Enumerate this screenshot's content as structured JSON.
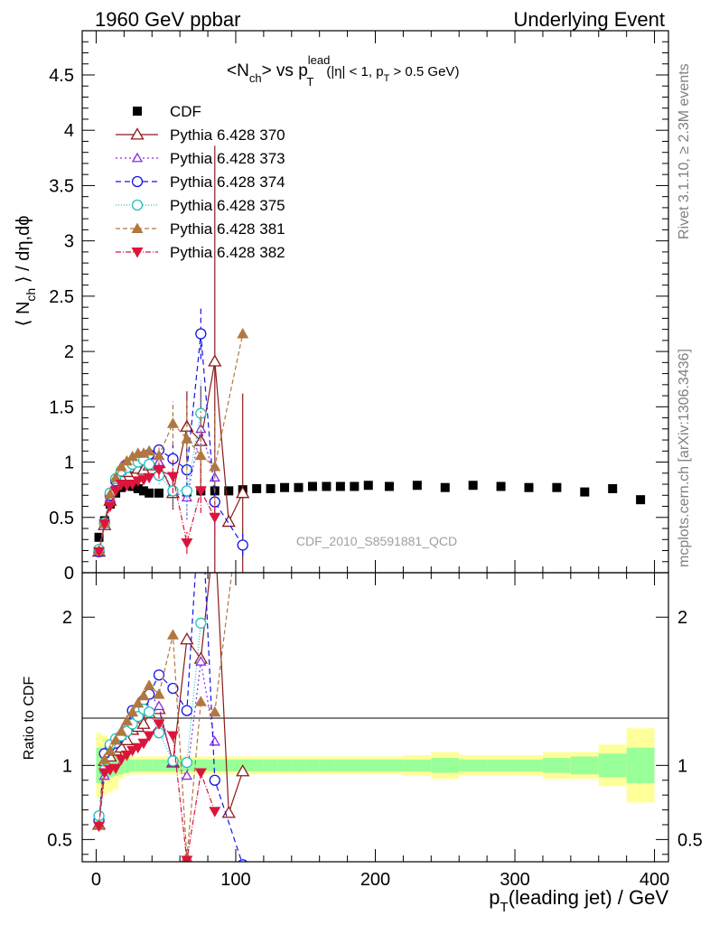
{
  "header": {
    "left": "1960 GeV ppbar",
    "right": "Underlying Event"
  },
  "side": {
    "rivet": "Rivet 3.1.10, ≥ 2.3M events",
    "mcplots": "mcplots.cern.ch [arXiv:1306.3436]"
  },
  "plot_title": {
    "main": "<N",
    "ch_sub": "ch",
    "vs": "> vs p",
    "lead_sup": "lead",
    "T_sub": "T",
    "cut1": "(|η| < 1, p",
    "cut_T_sub": "T",
    "cut2": " > 0.5 GeV)"
  },
  "watermark": "CDF_2010_S8591881_QCD",
  "ylabel_top": {
    "a": "⟨ N",
    "sub": "ch",
    "b": " ⟩ / dη,dϕ"
  },
  "ylabel_bottom": "Ratio to CDF",
  "xlabel": {
    "a": "p",
    "sub": "T",
    "b": "(leading jet) / GeV"
  },
  "chart_data": {
    "type": "scatter",
    "xlim": [
      -10,
      410
    ],
    "x_ticks": [
      "0",
      "100",
      "200",
      "300",
      "400"
    ],
    "main": {
      "ylim": [
        0,
        4.9
      ],
      "y_ticks": [
        "0",
        "0.5",
        "1",
        "1.5",
        "2",
        "2.5",
        "3",
        "3.5",
        "4",
        "4.5"
      ],
      "series": [
        {
          "name": "CDF",
          "color": "#000000",
          "marker": "square",
          "x": [
            2,
            6,
            10,
            14,
            18,
            22,
            26,
            30,
            34,
            38,
            45,
            55,
            65,
            75,
            85,
            95,
            105,
            115,
            125,
            135,
            145,
            155,
            165,
            175,
            185,
            195,
            210,
            230,
            250,
            270,
            290,
            310,
            330,
            350,
            370,
            390
          ],
          "y": [
            0.32,
            0.47,
            0.62,
            0.72,
            0.77,
            0.79,
            0.78,
            0.76,
            0.74,
            0.72,
            0.72,
            0.72,
            0.73,
            0.74,
            0.74,
            0.74,
            0.75,
            0.76,
            0.76,
            0.77,
            0.77,
            0.78,
            0.78,
            0.78,
            0.78,
            0.79,
            0.78,
            0.79,
            0.77,
            0.79,
            0.78,
            0.77,
            0.77,
            0.73,
            0.76,
            0.66
          ]
        },
        {
          "name": "Pythia 6.428 370",
          "color": "#8b1a1a",
          "marker": "triangle-open",
          "dash": "",
          "x": [
            2,
            6,
            10,
            14,
            18,
            22,
            26,
            30,
            34,
            38,
            45,
            55,
            65,
            75,
            85,
            95,
            105
          ],
          "y": [
            0.19,
            0.43,
            0.65,
            0.79,
            0.86,
            0.91,
            0.95,
            0.94,
            0.93,
            0.97,
            0.99,
            0.72,
            1.32,
            1.19,
            1.91,
            0.46,
            0.72
          ],
          "err": [
            0,
            0,
            0,
            0,
            0,
            0,
            0,
            0,
            0,
            0,
            0.07,
            0.15,
            0.32,
            0.5,
            1.95,
            0,
            0.9
          ]
        },
        {
          "name": "Pythia 6.428 373",
          "color": "#8a2be2",
          "marker": "triangle-open-small",
          "dash": "2,3",
          "x": [
            2,
            6,
            10,
            14,
            18,
            22,
            26,
            30,
            34,
            38,
            45,
            55,
            65,
            75,
            85
          ],
          "y": [
            0.19,
            0.44,
            0.68,
            0.84,
            0.92,
            0.98,
            1.0,
            1.03,
            1.04,
            1.06,
            1.0,
            0.73,
            0.68,
            1.3,
            0.86
          ],
          "err": [
            0,
            0,
            0,
            0,
            0,
            0,
            0,
            0,
            0,
            0,
            0.08,
            0.12,
            0.2,
            0.35,
            0.45
          ]
        },
        {
          "name": "Pythia 6.428 374",
          "color": "#1414e6",
          "marker": "circle-open",
          "dash": "6,4",
          "x": [
            2,
            6,
            10,
            14,
            18,
            22,
            26,
            30,
            34,
            38,
            45,
            55,
            65,
            75,
            85,
            105
          ],
          "y": [
            0.19,
            0.45,
            0.7,
            0.83,
            0.92,
            0.98,
            1.0,
            1.04,
            1.05,
            1.07,
            1.11,
            1.03,
            0.93,
            2.16,
            0.64,
            0.25
          ],
          "err": [
            0,
            0,
            0,
            0,
            0,
            0,
            0,
            0,
            0,
            0,
            0.08,
            0.15,
            0.25,
            0.23,
            0.2,
            0.1
          ]
        },
        {
          "name": "Pythia 6.428 375",
          "color": "#20c0c0",
          "marker": "circle-open",
          "dash": "1,2",
          "x": [
            2,
            6,
            10,
            14,
            18,
            22,
            26,
            30,
            34,
            38,
            45,
            55,
            65,
            75
          ],
          "y": [
            0.21,
            0.45,
            0.72,
            0.85,
            0.92,
            0.95,
            0.98,
            1.0,
            1.02,
            0.98,
            0.88,
            0.74,
            0.74,
            1.44
          ],
          "err": [
            0,
            0,
            0,
            0,
            0,
            0,
            0,
            0,
            0,
            0,
            0.08,
            0.15,
            0.25,
            0.3
          ]
        },
        {
          "name": "Pythia 6.428 381",
          "color": "#b07840",
          "marker": "triangle-filled",
          "dash": "5,3",
          "x": [
            2,
            6,
            10,
            14,
            18,
            22,
            26,
            30,
            34,
            38,
            45,
            55,
            65,
            75,
            85,
            105
          ],
          "y": [
            0.2,
            0.45,
            0.71,
            0.86,
            0.96,
            1.01,
            1.05,
            1.08,
            1.08,
            1.1,
            1.06,
            1.35,
            1.21,
            1.06,
            0.96,
            2.16
          ],
          "err": [
            0,
            0,
            0,
            0,
            0,
            0,
            0,
            0,
            0,
            0,
            0.1,
            0.2,
            0.35,
            0.4,
            0.5,
            0
          ]
        },
        {
          "name": "Pythia 6.428 382",
          "color": "#dc143c",
          "marker": "triangle-down-filled",
          "dash": "6,2,1,2",
          "x": [
            2,
            6,
            10,
            14,
            18,
            22,
            26,
            30,
            34,
            38,
            45,
            55,
            65,
            75,
            85
          ],
          "y": [
            0.19,
            0.44,
            0.6,
            0.74,
            0.8,
            0.79,
            0.8,
            0.83,
            0.84,
            0.86,
            0.93,
            0.87,
            0.27,
            0.74,
            0.5
          ],
          "err": [
            0,
            0,
            0,
            0,
            0,
            0,
            0,
            0,
            0,
            0,
            0.08,
            0.15,
            0.1,
            0.2,
            0.15
          ]
        }
      ]
    },
    "ratio": {
      "ylim": [
        0.35,
        2.3
      ],
      "y_ticks": [
        "0.5",
        "1",
        "2"
      ],
      "band_bins": [
        0,
        4,
        8,
        12,
        16,
        20,
        24,
        28,
        32,
        36,
        40,
        50,
        60,
        70,
        80,
        90,
        100,
        110,
        120,
        130,
        140,
        150,
        160,
        170,
        180,
        190,
        200,
        220,
        240,
        260,
        280,
        300,
        320,
        340,
        360,
        380,
        400
      ],
      "band_inner": [
        0.12,
        0.1,
        0.08,
        0.07,
        0.06,
        0.05,
        0.04,
        0.04,
        0.04,
        0.04,
        0.04,
        0.04,
        0.04,
        0.04,
        0.04,
        0.04,
        0.04,
        0.04,
        0.04,
        0.04,
        0.04,
        0.04,
        0.04,
        0.04,
        0.04,
        0.04,
        0.04,
        0.04,
        0.05,
        0.04,
        0.04,
        0.04,
        0.05,
        0.06,
        0.08,
        0.12
      ],
      "band_outer": [
        0.22,
        0.2,
        0.18,
        0.16,
        0.09,
        0.07,
        0.06,
        0.06,
        0.06,
        0.06,
        0.06,
        0.06,
        0.06,
        0.06,
        0.06,
        0.06,
        0.06,
        0.06,
        0.06,
        0.06,
        0.06,
        0.06,
        0.06,
        0.06,
        0.06,
        0.06,
        0.06,
        0.07,
        0.09,
        0.07,
        0.07,
        0.07,
        0.09,
        0.09,
        0.14,
        0.25
      ],
      "series": [
        {
          "name": "Pythia 6.428 370",
          "x": [
            2,
            6,
            10,
            14,
            18,
            22,
            26,
            30,
            34,
            38,
            45,
            55,
            65,
            75,
            85,
            95,
            105
          ],
          "y": [
            0.6,
            1.03,
            1.06,
            1.1,
            1.12,
            1.17,
            1.24,
            1.26,
            1.28,
            1.35,
            1.38,
            1.02,
            1.85,
            1.72,
            2.6,
            0.68,
            0.96
          ]
        },
        {
          "name": "Pythia 6.428 373",
          "x": [
            2,
            6,
            10,
            14,
            18,
            22,
            26,
            30,
            34,
            38,
            45,
            55,
            65,
            75,
            85
          ],
          "y": [
            0.6,
            0.93,
            1.1,
            1.16,
            1.2,
            1.25,
            1.3,
            1.36,
            1.43,
            1.49,
            1.4,
            1.02,
            0.93,
            1.7,
            1.16
          ]
        },
        {
          "name": "Pythia 6.428 374",
          "x": [
            2,
            6,
            10,
            14,
            18,
            22,
            26,
            30,
            34,
            38,
            45,
            55,
            65,
            75,
            85,
            105
          ],
          "y": [
            0.63,
            1.08,
            1.13,
            1.15,
            1.2,
            1.26,
            1.37,
            1.38,
            1.44,
            1.48,
            1.61,
            1.52,
            1.37,
            2.9,
            0.9,
            0.33
          ]
        },
        {
          "name": "Pythia 6.428 375",
          "x": [
            2,
            6,
            10,
            14,
            18,
            22,
            26,
            30,
            34,
            38,
            45,
            55,
            65,
            75
          ],
          "y": [
            0.66,
            0.97,
            1.14,
            1.18,
            1.2,
            1.23,
            1.28,
            1.33,
            1.38,
            1.36,
            1.22,
            1.03,
            1.02,
            1.96
          ]
        },
        {
          "name": "Pythia 6.428 381",
          "x": [
            2,
            6,
            10,
            14,
            18,
            22,
            26,
            30,
            34,
            38,
            45,
            55,
            65,
            75,
            85,
            105
          ],
          "y": [
            0.6,
            1.04,
            1.1,
            1.17,
            1.23,
            1.3,
            1.36,
            1.42,
            1.47,
            1.54,
            1.48,
            1.88,
            0.38,
            1.43,
            1.36,
            2.9
          ]
        },
        {
          "name": "Pythia 6.428 382",
          "x": [
            2,
            6,
            10,
            14,
            18,
            22,
            26,
            30,
            34,
            38,
            45,
            55,
            65,
            75,
            85
          ],
          "y": [
            0.59,
            0.95,
            0.97,
            0.98,
            1.04,
            1.07,
            1.1,
            1.12,
            1.15,
            1.2,
            1.28,
            1.2,
            0.36,
            0.95,
            0.69
          ]
        }
      ]
    }
  }
}
